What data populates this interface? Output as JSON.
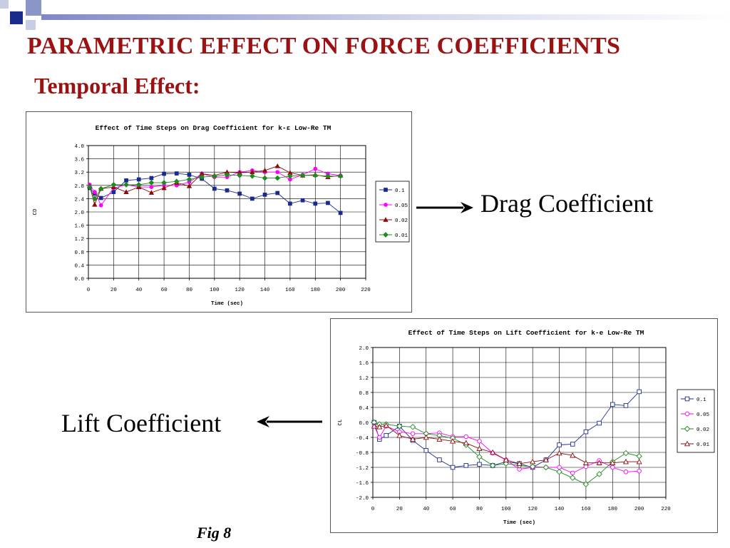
{
  "slide": {
    "title": "PARAMETRIC EFFECT ON FORCE COEFFICIENTS",
    "subtitle": "Temporal Effect:",
    "drag_label": "Drag Coefficient",
    "lift_label": "Lift Coefficient",
    "fig_caption": "Fig 8",
    "title_color": "#9b1212",
    "deco_colors": [
      "#1a2b8c",
      "#8a95c8",
      "#c8cde6"
    ]
  },
  "chart_data": [
    {
      "type": "line",
      "title": "Effect of Time Steps on Drag Coefficient for k-ε Low-Re TM",
      "xlabel": "Time (sec)",
      "ylabel": "CD",
      "xlim": [
        0,
        220
      ],
      "ylim": [
        0,
        4
      ],
      "xticks": [
        "0",
        "20",
        "40",
        "60",
        "80",
        "100",
        "120",
        "140",
        "160",
        "180",
        "200",
        "220"
      ],
      "yticks": [
        "0.0",
        "0.4",
        "0.8",
        "1.2",
        "1.6",
        "2.0",
        "2.4",
        "2.8",
        "3.2",
        "3.6",
        "4.0"
      ],
      "grid": true,
      "legend": "right",
      "series": [
        {
          "name": "0.1",
          "color": "#1a2b8c",
          "marker": "square",
          "filled": true,
          "x": [
            1,
            5,
            10,
            20,
            30,
            40,
            50,
            60,
            70,
            80,
            90,
            100,
            110,
            120,
            130,
            140,
            150,
            160,
            170,
            180,
            190,
            200
          ],
          "y": [
            2.72,
            2.55,
            2.42,
            2.6,
            2.95,
            2.98,
            3.02,
            3.15,
            3.16,
            3.12,
            3.0,
            2.7,
            2.65,
            2.55,
            2.4,
            2.52,
            2.57,
            2.25,
            2.35,
            2.25,
            2.27,
            1.97
          ]
        },
        {
          "name": "0.05",
          "color": "#ff00ff",
          "marker": "circle",
          "filled": true,
          "x": [
            1,
            5,
            10,
            20,
            30,
            40,
            50,
            60,
            70,
            80,
            90,
            100,
            110,
            120,
            130,
            140,
            150,
            160,
            170,
            180,
            190,
            200
          ],
          "y": [
            2.82,
            2.6,
            2.2,
            2.72,
            2.82,
            2.75,
            2.75,
            2.8,
            2.8,
            2.9,
            3.15,
            3.05,
            3.05,
            3.2,
            3.25,
            3.2,
            3.2,
            2.98,
            3.12,
            3.3,
            3.15,
            3.1
          ]
        },
        {
          "name": "0.02",
          "color": "#8b0a0a",
          "marker": "triangle",
          "filled": true,
          "x": [
            1,
            5,
            10,
            20,
            30,
            40,
            50,
            60,
            70,
            80,
            90,
            100,
            110,
            120,
            130,
            140,
            150,
            160,
            170,
            180,
            190,
            200
          ],
          "y": [
            2.78,
            2.22,
            2.7,
            2.75,
            2.6,
            2.75,
            2.58,
            2.72,
            2.88,
            2.78,
            3.15,
            3.1,
            3.2,
            3.18,
            3.2,
            3.25,
            3.38,
            3.18,
            3.1,
            3.12,
            3.05,
            3.1
          ]
        },
        {
          "name": "0.01",
          "color": "#1f8a1f",
          "marker": "diamond",
          "filled": true,
          "x": [
            1,
            5,
            10,
            20,
            30,
            40,
            50,
            60,
            70,
            80,
            90,
            100,
            110,
            120,
            130,
            140,
            150,
            160,
            170,
            180,
            190,
            200
          ],
          "y": [
            2.75,
            2.4,
            2.7,
            2.82,
            2.82,
            2.82,
            2.88,
            2.88,
            2.92,
            2.98,
            3.05,
            3.08,
            3.12,
            3.1,
            3.08,
            3.02,
            3.02,
            3.08,
            3.1,
            3.1,
            3.08,
            3.08
          ]
        }
      ]
    },
    {
      "type": "line",
      "title": "Effect of Time Steps on Lift Coefficient for k-e Low-Re TM",
      "xlabel": "Time (sec)",
      "ylabel": "CL",
      "xlim": [
        0,
        220
      ],
      "ylim": [
        -2,
        2
      ],
      "xticks": [
        "0",
        "20",
        "40",
        "60",
        "80",
        "100",
        "120",
        "140",
        "160",
        "180",
        "200",
        "220"
      ],
      "yticks": [
        "-2.0",
        "-1.6",
        "-1.2",
        "-0.8",
        "-0.4",
        "0.0",
        "0.4",
        "0.8",
        "1.2",
        "1.6",
        "2.0"
      ],
      "grid": true,
      "legend": "right",
      "series": [
        {
          "name": "0.1",
          "color": "#1a2b8c",
          "marker": "square",
          "filled": false,
          "x": [
            1,
            5,
            10,
            20,
            30,
            40,
            50,
            60,
            70,
            80,
            90,
            100,
            110,
            120,
            130,
            140,
            150,
            160,
            170,
            180,
            190,
            200
          ],
          "y": [
            0.0,
            -0.45,
            -0.35,
            -0.1,
            -0.48,
            -0.75,
            -1.0,
            -1.2,
            -1.15,
            -1.12,
            -1.15,
            -1.05,
            -1.1,
            -1.2,
            -1.0,
            -0.6,
            -0.58,
            -0.25,
            -0.02,
            0.48,
            0.45,
            0.82
          ]
        },
        {
          "name": "0.05",
          "color": "#ff00ff",
          "marker": "circle",
          "filled": false,
          "x": [
            1,
            5,
            10,
            20,
            30,
            40,
            50,
            60,
            70,
            80,
            90,
            100,
            110,
            120,
            130,
            140,
            150,
            160,
            170,
            180,
            190,
            200
          ],
          "y": [
            -0.1,
            -0.4,
            -0.1,
            -0.25,
            -0.3,
            -0.3,
            -0.28,
            -0.38,
            -0.38,
            -0.5,
            -0.82,
            -1.0,
            -1.25,
            -1.2,
            -1.2,
            -1.2,
            -1.35,
            -1.18,
            -1.02,
            -1.2,
            -1.32,
            -1.3
          ]
        },
        {
          "name": "0.02",
          "color": "#1f8a1f",
          "marker": "diamond",
          "filled": false,
          "x": [
            1,
            5,
            10,
            20,
            30,
            40,
            50,
            60,
            70,
            80,
            90,
            100,
            110,
            120,
            130,
            140,
            150,
            160,
            170,
            180,
            190,
            200
          ],
          "y": [
            0.0,
            -0.05,
            -0.05,
            -0.1,
            -0.12,
            -0.3,
            -0.35,
            -0.42,
            -0.6,
            -0.92,
            -1.15,
            -1.1,
            -1.15,
            -1.18,
            -1.2,
            -1.32,
            -1.48,
            -1.65,
            -1.38,
            -1.05,
            -0.82,
            -0.9
          ]
        },
        {
          "name": "0.01",
          "color": "#8b0a0a",
          "marker": "triangle",
          "filled": false,
          "x": [
            1,
            5,
            10,
            20,
            30,
            40,
            50,
            60,
            70,
            80,
            90,
            100,
            110,
            120,
            130,
            140,
            150,
            160,
            170,
            180,
            190,
            200
          ],
          "y": [
            -0.1,
            -0.12,
            -0.08,
            -0.35,
            -0.45,
            -0.4,
            -0.45,
            -0.5,
            -0.55,
            -0.7,
            -0.8,
            -1.0,
            -1.1,
            -1.05,
            -1.0,
            -0.82,
            -0.88,
            -1.08,
            -1.08,
            -1.08,
            -1.05,
            -1.05
          ]
        }
      ]
    }
  ]
}
